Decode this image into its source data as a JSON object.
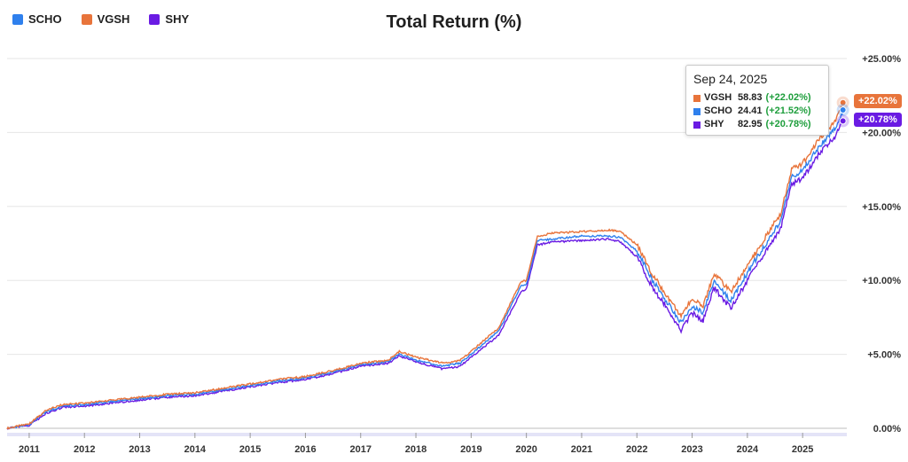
{
  "legend": [
    {
      "name": "SCHO",
      "color": "#2f80ed"
    },
    {
      "name": "VGSH",
      "color": "#e8743b"
    },
    {
      "name": "SHY",
      "color": "#6a1be3"
    }
  ],
  "tooltip": {
    "date": "Sep 24, 2025",
    "rows": [
      {
        "symbol": "VGSH",
        "value": "58.83",
        "change": "(+22.02%)",
        "color": "#e8743b"
      },
      {
        "symbol": "SCHO",
        "value": "24.41",
        "change": "(+21.52%)",
        "color": "#2f80ed"
      },
      {
        "symbol": "SHY",
        "value": "82.95",
        "change": "(+20.78%)",
        "color": "#6a1be3"
      }
    ]
  },
  "end_labels": [
    {
      "text": "+22.02%",
      "color": "#e8743b"
    },
    {
      "text": "+20.78%",
      "color": "#6a1be3"
    }
  ],
  "chart_data": {
    "type": "line",
    "title": "Total Return (%)",
    "xlabel": "",
    "ylabel": "",
    "x_ticks": [
      "2011",
      "2012",
      "2013",
      "2014",
      "2015",
      "2016",
      "2017",
      "2018",
      "2019",
      "2020",
      "2021",
      "2022",
      "2023",
      "2024",
      "2025"
    ],
    "y_ticks": [
      "0.00%",
      "+5.00%",
      "+10.00%",
      "+15.00%",
      "+20.00%",
      "+25.00%"
    ],
    "ylim": [
      0,
      25
    ],
    "xlim": [
      2010.6,
      2025.8
    ],
    "grid": true,
    "legend_position": "top-left",
    "x": [
      2010.6,
      2011.0,
      2011.3,
      2011.6,
      2012.0,
      2012.5,
      2013.0,
      2013.5,
      2014.0,
      2014.5,
      2015.0,
      2015.5,
      2016.0,
      2016.5,
      2017.0,
      2017.5,
      2017.7,
      2018.0,
      2018.5,
      2018.8,
      2019.0,
      2019.5,
      2019.9,
      2020.0,
      2020.2,
      2020.5,
      2021.0,
      2021.5,
      2021.7,
      2022.0,
      2022.3,
      2022.5,
      2022.8,
      2023.0,
      2023.2,
      2023.4,
      2023.7,
      2024.0,
      2024.3,
      2024.6,
      2024.8,
      2025.0,
      2025.3,
      2025.6,
      2025.73
    ],
    "series": [
      {
        "name": "VGSH",
        "color": "#e8743b",
        "values": [
          0.0,
          0.3,
          1.2,
          1.6,
          1.7,
          1.9,
          2.1,
          2.3,
          2.4,
          2.7,
          3.0,
          3.3,
          3.5,
          3.9,
          4.4,
          4.6,
          5.2,
          4.8,
          4.4,
          4.6,
          5.2,
          6.8,
          9.9,
          10.0,
          13.0,
          13.2,
          13.3,
          13.4,
          13.3,
          12.4,
          10.3,
          9.2,
          7.6,
          8.8,
          8.3,
          10.5,
          9.2,
          11.0,
          12.8,
          14.5,
          17.5,
          17.9,
          19.6,
          20.8,
          22.02
        ]
      },
      {
        "name": "SCHO",
        "color": "#2f80ed",
        "values": [
          0.0,
          0.25,
          1.1,
          1.5,
          1.6,
          1.8,
          2.0,
          2.2,
          2.3,
          2.6,
          2.9,
          3.2,
          3.4,
          3.8,
          4.3,
          4.5,
          5.0,
          4.6,
          4.2,
          4.4,
          5.0,
          6.6,
          9.6,
          9.7,
          12.7,
          12.8,
          13.0,
          13.0,
          12.9,
          12.0,
          9.9,
          8.8,
          7.1,
          8.3,
          7.8,
          10.0,
          8.6,
          10.5,
          12.3,
          14.0,
          17.0,
          17.4,
          19.1,
          20.3,
          21.52
        ]
      },
      {
        "name": "SHY",
        "color": "#6a1be3",
        "values": [
          0.0,
          0.2,
          1.0,
          1.4,
          1.5,
          1.7,
          1.9,
          2.1,
          2.2,
          2.5,
          2.8,
          3.1,
          3.3,
          3.7,
          4.2,
          4.4,
          4.9,
          4.5,
          4.0,
          4.2,
          4.8,
          6.3,
          9.2,
          9.4,
          12.4,
          12.6,
          12.7,
          12.8,
          12.6,
          11.6,
          9.4,
          8.4,
          6.6,
          7.8,
          7.3,
          9.5,
          8.1,
          10.0,
          11.8,
          13.5,
          16.5,
          16.9,
          18.6,
          19.8,
          20.78
        ]
      }
    ]
  }
}
